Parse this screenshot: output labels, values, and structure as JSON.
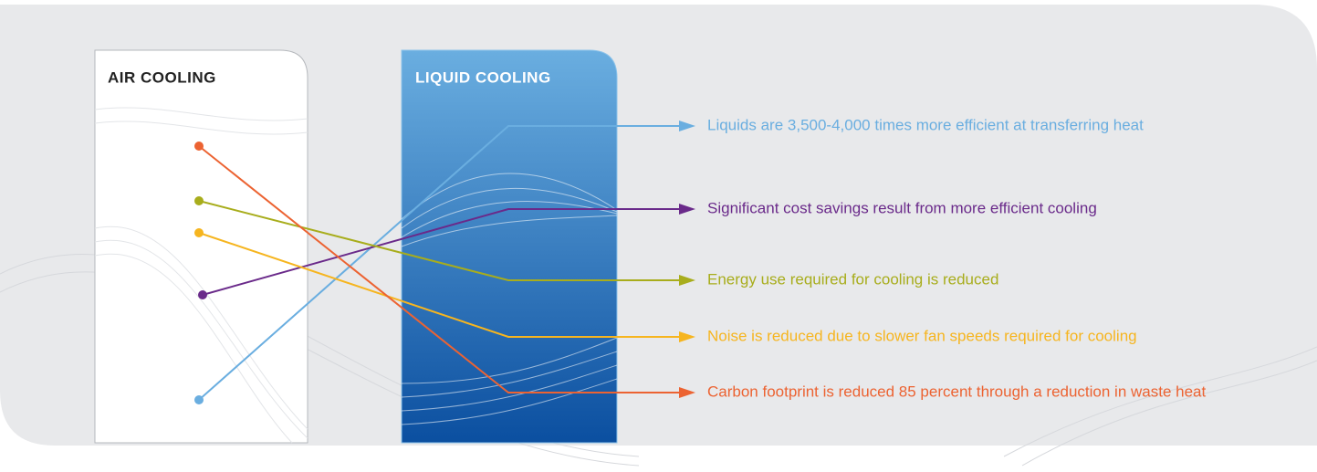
{
  "panels": {
    "air": {
      "title": "AIR COOLING"
    },
    "liquid": {
      "title": "LIQUID COOLING"
    }
  },
  "benefits": [
    {
      "text": "Liquids are 3,500-4,000 times more efficient at transferring heat",
      "color": "#6aaee0"
    },
    {
      "text": "Significant cost savings result from more efficient cooling",
      "color": "#6a2a8a"
    },
    {
      "text": "Energy use required for cooling is reduced",
      "color": "#a8ad1c"
    },
    {
      "text": "Noise is reduced due to slower fan speeds required for cooling",
      "color": "#f6b51f"
    },
    {
      "text": "Carbon footprint is reduced 85 percent through a reduction in waste heat",
      "color": "#ec6332"
    }
  ]
}
